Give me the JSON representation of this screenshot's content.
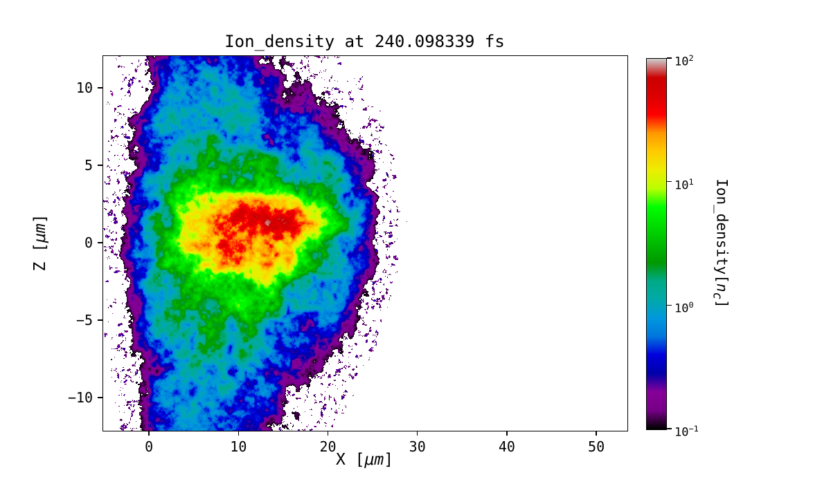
{
  "figure": {
    "title": "Ion_density at 240.098339 fs",
    "xlabel": {
      "pre": "X [",
      "unit": "μm",
      "post": "]"
    },
    "ylabel": {
      "pre": "Z [",
      "unit": "μm",
      "post": "]"
    },
    "colorbar_label": {
      "pre": "Ion_density[",
      "var": "n",
      "sub": "c",
      "post": "]"
    }
  },
  "chart_data": {
    "type": "heatmap",
    "title": "Ion_density at 240.098339 fs",
    "xlabel": "X [μm]",
    "ylabel": "Z [μm]",
    "xlim": [
      -5.2,
      53.4
    ],
    "ylim": [
      -12.1,
      12.1
    ],
    "x_ticks": [
      {
        "v": 0,
        "label": "0"
      },
      {
        "v": 10,
        "label": "10"
      },
      {
        "v": 20,
        "label": "20"
      },
      {
        "v": 30,
        "label": "30"
      },
      {
        "v": 40,
        "label": "40"
      },
      {
        "v": 50,
        "label": "50"
      }
    ],
    "y_ticks": [
      {
        "v": 10,
        "label": "10"
      },
      {
        "v": 5,
        "label": "5"
      },
      {
        "v": 0,
        "label": "0"
      },
      {
        "v": -5,
        "label": "−5"
      },
      {
        "v": -10,
        "label": "−10"
      }
    ],
    "grid": false,
    "legend": "none",
    "colorbar": {
      "label": "Ion_density[n_c]",
      "scale": "log10",
      "vmin": 0.1,
      "vmax": 100,
      "tick_exponents": [
        2,
        1,
        0,
        -1
      ],
      "colormap": "nipy_spectral",
      "stops": [
        [
          0.0,
          0,
          0,
          0
        ],
        [
          0.05,
          119,
          0,
          136
        ],
        [
          0.1,
          136,
          0,
          153
        ],
        [
          0.15,
          0,
          0,
          170
        ],
        [
          0.2,
          0,
          0,
          221
        ],
        [
          0.25,
          0,
          119,
          221
        ],
        [
          0.3,
          0,
          153,
          221
        ],
        [
          0.35,
          0,
          170,
          170
        ],
        [
          0.4,
          0,
          170,
          136
        ],
        [
          0.45,
          0,
          153,
          0
        ],
        [
          0.5,
          0,
          187,
          0
        ],
        [
          0.55,
          0,
          221,
          0
        ],
        [
          0.6,
          0,
          255,
          0
        ],
        [
          0.65,
          187,
          255,
          0
        ],
        [
          0.7,
          238,
          238,
          0
        ],
        [
          0.75,
          255,
          204,
          0
        ],
        [
          0.8,
          255,
          153,
          0
        ],
        [
          0.85,
          255,
          0,
          0
        ],
        [
          0.9,
          221,
          0,
          0
        ],
        [
          0.95,
          204,
          0,
          0
        ],
        [
          1.0,
          204,
          204,
          204
        ]
      ]
    },
    "density_model": {
      "units": "n_c",
      "blobs": [
        {
          "a": 0.85,
          "x": 6.5,
          "sx": 6.0,
          "z": 0.0,
          "sz": 6.8
        },
        {
          "a": 0.8,
          "x": 4.5,
          "sx": 4.0,
          "z": 0.0,
          "sz": 9.5
        },
        {
          "a": 2.0,
          "x": 9.0,
          "sx": 5.0,
          "z": 0.0,
          "sz": 4.2
        },
        {
          "a": 3.5,
          "x": 9.0,
          "sx": 4.8,
          "z": 0.2,
          "sz": 2.8
        },
        {
          "a": 8.0,
          "x": 9.5,
          "sx": 4.2,
          "z": 0.6,
          "sz": 1.8
        },
        {
          "a": 28.0,
          "x": 12.5,
          "sx": 3.4,
          "z": 1.6,
          "sz": 0.7
        },
        {
          "a": 16.0,
          "x": 10.5,
          "sx": 3.2,
          "z": -0.8,
          "sz": 0.9
        },
        {
          "a": 15.0,
          "x": 15.3,
          "sx": 1.7,
          "z": 0.7,
          "sz": 1.2
        },
        {
          "a": 1.2,
          "x": 19.5,
          "sx": 2.4,
          "z": 2.8,
          "sz": 2.4
        },
        {
          "a": 1.0,
          "x": 20.0,
          "sx": 2.0,
          "z": -1.0,
          "sz": 2.2
        }
      ],
      "edge": {
        "x": 0.0,
        "w": 1.6
      },
      "noise": {
        "s1x": 0.45,
        "s1z": 0.75,
        "pow": 1.6,
        "amp": 2.3,
        "floor": 0.18,
        "s2x": 1.7,
        "s2z": 2.9
      },
      "speckle": {
        "env_min": 0.008,
        "sx": 2.6,
        "sz": 4.4,
        "threshold": 0.68
      }
    },
    "description": "2D ion density map of an expanding plasma plume at t = 240.098339 fs. Turbulent cloud spans roughly x = -3 to 24 μm and z = -12 to 12 μm; teal/blue halo (~0.3-2 n_c) with green patches (~3-6 n_c), a yellow core band near z = 0 (~8-20 n_c), and red filaments up to ~60 n_c along z ≈ 1.6 μm for x ≈ 8-17 μm; sparse dark purple specks at the outskirts; region x > 25 μm is empty."
  }
}
